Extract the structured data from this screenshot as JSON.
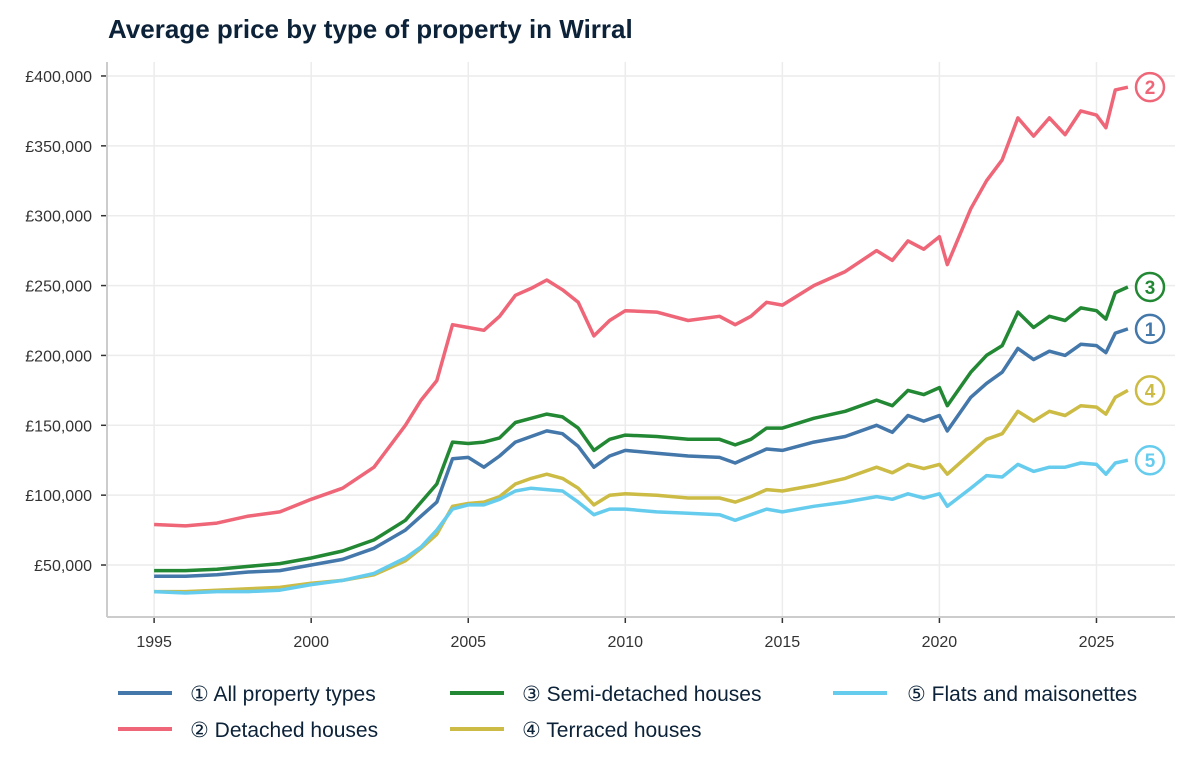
{
  "chart_data": {
    "type": "line",
    "title": "Average price by type of property in Wirral",
    "xlabel": "",
    "ylabel": "",
    "xlim": [
      1993.5,
      2027.5
    ],
    "ylim": [
      12800,
      410000
    ],
    "grid": true,
    "legend_placement": "bottom",
    "x_ticks": [
      1995,
      2000,
      2005,
      2010,
      2015,
      2020,
      2025
    ],
    "x_tick_labels": [
      "1995",
      "2000",
      "2005",
      "2010",
      "2015",
      "2020",
      "2025"
    ],
    "y_ticks": [
      50000,
      100000,
      150000,
      200000,
      250000,
      300000,
      350000,
      400000
    ],
    "y_tick_labels": [
      "£50,000",
      "£100,000",
      "£150,000",
      "£200,000",
      "£250,000",
      "£300,000",
      "£350,000",
      "£400,000"
    ],
    "x": [
      1995,
      1996,
      1997,
      1998,
      1999,
      2000,
      2001,
      2002,
      2003,
      2003.5,
      2004,
      2004.5,
      2005,
      2005.5,
      2006,
      2006.5,
      2007,
      2007.5,
      2008,
      2008.5,
      2009,
      2009.5,
      2010,
      2011,
      2012,
      2013,
      2013.5,
      2014,
      2014.5,
      2015,
      2016,
      2017,
      2018,
      2018.5,
      2019,
      2019.5,
      2020,
      2020.25,
      2021,
      2021.5,
      2022,
      2022.5,
      2023,
      2023.5,
      2024,
      2024.5,
      2025,
      2025.3,
      2025.6,
      2026
    ],
    "series": [
      {
        "name": "① All property types",
        "end_label": "1",
        "color": "#4477aa",
        "values": [
          42000,
          42000,
          43000,
          45000,
          46000,
          50000,
          54000,
          62000,
          75000,
          85000,
          95000,
          126000,
          127000,
          120000,
          128000,
          138000,
          142000,
          146000,
          144000,
          135000,
          120000,
          128000,
          132000,
          130000,
          128000,
          127000,
          123000,
          128000,
          133000,
          132000,
          138000,
          142000,
          150000,
          145000,
          157000,
          153000,
          157000,
          146000,
          170000,
          180000,
          188000,
          205000,
          197000,
          203000,
          200000,
          208000,
          207000,
          202000,
          216000,
          219000
        ]
      },
      {
        "name": "② Detached houses",
        "end_label": "2",
        "color": "#ee6677",
        "values": [
          79000,
          78000,
          80000,
          85000,
          88000,
          97000,
          105000,
          120000,
          150000,
          168000,
          182000,
          222000,
          220000,
          218000,
          228000,
          243000,
          248000,
          254000,
          247000,
          238000,
          214000,
          225000,
          232000,
          231000,
          225000,
          228000,
          222000,
          228000,
          238000,
          236000,
          250000,
          260000,
          275000,
          268000,
          282000,
          276000,
          285000,
          265000,
          305000,
          325000,
          340000,
          370000,
          357000,
          370000,
          358000,
          375000,
          372000,
          363000,
          390000,
          392000
        ]
      },
      {
        "name": "③ Semi-detached houses",
        "end_label": "3",
        "color": "#228833",
        "values": [
          46000,
          46000,
          47000,
          49000,
          51000,
          55000,
          60000,
          68000,
          82000,
          95000,
          108000,
          138000,
          137000,
          138000,
          141000,
          152000,
          155000,
          158000,
          156000,
          148000,
          132000,
          140000,
          143000,
          142000,
          140000,
          140000,
          136000,
          140000,
          148000,
          148000,
          155000,
          160000,
          168000,
          164000,
          175000,
          172000,
          177000,
          164000,
          188000,
          200000,
          207000,
          231000,
          220000,
          228000,
          225000,
          234000,
          232000,
          226000,
          245000,
          249000
        ]
      },
      {
        "name": "④ Terraced houses",
        "end_label": "4",
        "color": "#ccbb44",
        "values": [
          31000,
          31000,
          32000,
          33000,
          34000,
          37000,
          39000,
          43000,
          53000,
          62000,
          72000,
          92000,
          94000,
          95000,
          99000,
          108000,
          112000,
          115000,
          112000,
          105000,
          93000,
          100000,
          101000,
          100000,
          98000,
          98000,
          95000,
          99000,
          104000,
          103000,
          107000,
          112000,
          120000,
          116000,
          122000,
          119000,
          122000,
          115000,
          130000,
          140000,
          144000,
          160000,
          153000,
          160000,
          157000,
          164000,
          163000,
          158000,
          170000,
          175000
        ]
      },
      {
        "name": "⑤ Flats and maisonettes",
        "end_label": "5",
        "color": "#66ccee",
        "values": [
          31000,
          30000,
          31000,
          31000,
          32000,
          36000,
          39000,
          44000,
          55000,
          63000,
          75000,
          90000,
          93000,
          93000,
          97000,
          103000,
          105000,
          104000,
          103000,
          95000,
          86000,
          90000,
          90000,
          88000,
          87000,
          86000,
          82000,
          86000,
          90000,
          88000,
          92000,
          95000,
          99000,
          97000,
          101000,
          98000,
          101000,
          92000,
          105000,
          114000,
          113000,
          122000,
          117000,
          120000,
          120000,
          123000,
          122000,
          115000,
          123000,
          125000
        ]
      }
    ]
  }
}
